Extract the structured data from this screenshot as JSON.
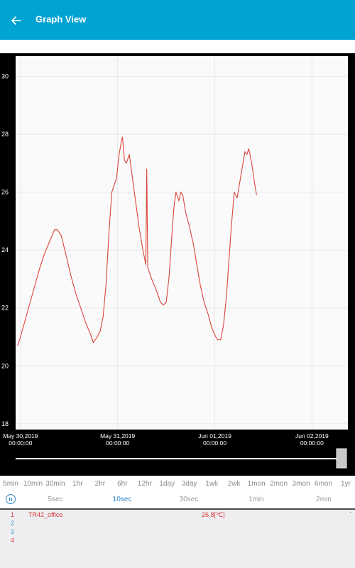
{
  "appbar": {
    "title": "Graph View",
    "back_icon": "arrow-left-icon",
    "background": "#00a3d2"
  },
  "chart_data": {
    "type": "line",
    "ylim": [
      17.8,
      30.7
    ],
    "y_ticks": [
      "30",
      "28",
      "26",
      "24",
      "22",
      "20",
      "18"
    ],
    "y_tick_values": [
      30,
      28,
      26,
      24,
      22,
      20,
      18
    ],
    "x_ticks": [
      {
        "date": "May 30,2019",
        "time": "00:00:00"
      },
      {
        "date": "May 31,2019",
        "time": "00:00:00"
      },
      {
        "date": "Jun 01,2019",
        "time": "00:00:00"
      },
      {
        "date": "Jun 02,2019",
        "time": "00:00:00"
      }
    ],
    "x_range_days": [
      -0.05,
      3.37
    ],
    "series": [
      {
        "name": "TR42_office",
        "color": "#d9443a",
        "points": [
          [
            -0.03,
            20.7
          ],
          [
            0.0,
            21.0
          ],
          [
            0.05,
            21.6
          ],
          [
            0.1,
            22.2
          ],
          [
            0.15,
            22.8
          ],
          [
            0.2,
            23.4
          ],
          [
            0.25,
            23.9
          ],
          [
            0.3,
            24.3
          ],
          [
            0.35,
            24.7
          ],
          [
            0.38,
            24.7
          ],
          [
            0.42,
            24.5
          ],
          [
            0.47,
            23.8
          ],
          [
            0.52,
            23.1
          ],
          [
            0.57,
            22.5
          ],
          [
            0.62,
            22.0
          ],
          [
            0.67,
            21.5
          ],
          [
            0.72,
            21.1
          ],
          [
            0.75,
            20.8
          ],
          [
            0.79,
            21.0
          ],
          [
            0.82,
            21.2
          ],
          [
            0.85,
            21.7
          ],
          [
            0.88,
            22.8
          ],
          [
            0.91,
            24.6
          ],
          [
            0.94,
            26.0
          ],
          [
            0.97,
            26.3
          ],
          [
            0.99,
            26.5
          ],
          [
            1.01,
            27.2
          ],
          [
            1.04,
            27.8
          ],
          [
            1.05,
            27.9
          ],
          [
            1.07,
            27.1
          ],
          [
            1.09,
            27.0
          ],
          [
            1.12,
            27.3
          ],
          [
            1.14,
            26.8
          ],
          [
            1.18,
            25.8
          ],
          [
            1.22,
            24.8
          ],
          [
            1.26,
            24.0
          ],
          [
            1.29,
            23.5
          ],
          [
            1.3,
            26.8
          ],
          [
            1.31,
            23.4
          ],
          [
            1.35,
            23.0
          ],
          [
            1.4,
            22.6
          ],
          [
            1.44,
            22.2
          ],
          [
            1.47,
            22.1
          ],
          [
            1.5,
            22.2
          ],
          [
            1.53,
            23.1
          ],
          [
            1.56,
            24.6
          ],
          [
            1.58,
            25.5
          ],
          [
            1.6,
            26.0
          ],
          [
            1.63,
            25.7
          ],
          [
            1.65,
            26.0
          ],
          [
            1.67,
            25.9
          ],
          [
            1.7,
            25.3
          ],
          [
            1.74,
            24.8
          ],
          [
            1.78,
            24.2
          ],
          [
            1.81,
            23.6
          ],
          [
            1.85,
            22.8
          ],
          [
            1.89,
            22.2
          ],
          [
            1.93,
            21.8
          ],
          [
            1.97,
            21.3
          ],
          [
            2.01,
            21.0
          ],
          [
            2.03,
            20.9
          ],
          [
            2.06,
            20.9
          ],
          [
            2.09,
            21.4
          ],
          [
            2.12,
            22.4
          ],
          [
            2.14,
            23.4
          ],
          [
            2.17,
            24.8
          ],
          [
            2.2,
            26.0
          ],
          [
            2.23,
            25.8
          ],
          [
            2.26,
            26.4
          ],
          [
            2.29,
            27.0
          ],
          [
            2.31,
            27.4
          ],
          [
            2.33,
            27.3
          ],
          [
            2.35,
            27.5
          ],
          [
            2.38,
            27.0
          ],
          [
            2.41,
            26.3
          ],
          [
            2.43,
            25.9
          ]
        ]
      }
    ]
  },
  "time_ranges": [
    "5min",
    "10min",
    "30min",
    "1hr",
    "2hr",
    "6hr",
    "12hr",
    "1day",
    "3day",
    "1wk",
    "2wk",
    "1mon",
    "2mon",
    "3mon",
    "6mon",
    "1yr"
  ],
  "intervals": [
    {
      "label": "5sec",
      "active": false
    },
    {
      "label": "10sec",
      "active": true
    },
    {
      "label": "30sec",
      "active": false
    },
    {
      "label": "1min",
      "active": false
    },
    {
      "label": "2min",
      "active": false
    }
  ],
  "channels": [
    {
      "num": "1",
      "name": "TR42_office",
      "value": "26.8[℃]",
      "num_color": "#d43c3c"
    },
    {
      "num": "2",
      "name": "",
      "value": "",
      "num_color": "#3aa0c8"
    },
    {
      "num": "3",
      "name": "",
      "value": "",
      "num_color": "#3aa0c8"
    },
    {
      "num": "4",
      "name": "",
      "value": "",
      "num_color": "#d43c3c"
    }
  ],
  "channel_dot": "·"
}
